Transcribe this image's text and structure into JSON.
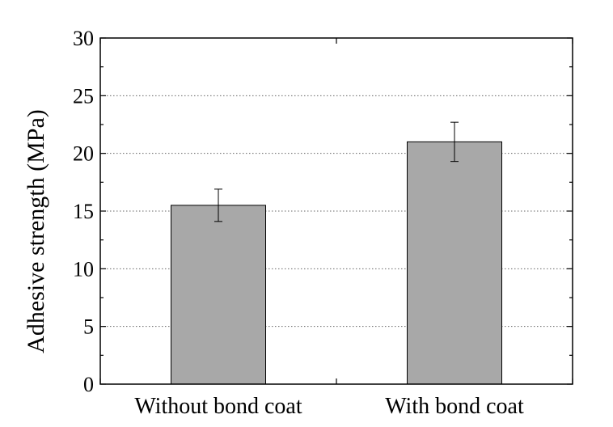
{
  "chart_data": {
    "type": "bar",
    "categories": [
      "Without bond coat",
      "With bond coat"
    ],
    "values": [
      15.5,
      21.0
    ],
    "error": [
      1.4,
      1.7
    ],
    "title": "",
    "xlabel": "",
    "ylabel": "Adhesive strength (MPa)",
    "ylim": [
      0,
      30
    ],
    "yticks": [
      0,
      5,
      10,
      15,
      20,
      25,
      30
    ],
    "grid": "horizontal dotted",
    "bar_color": "#a8a8a8",
    "legend": "none"
  }
}
